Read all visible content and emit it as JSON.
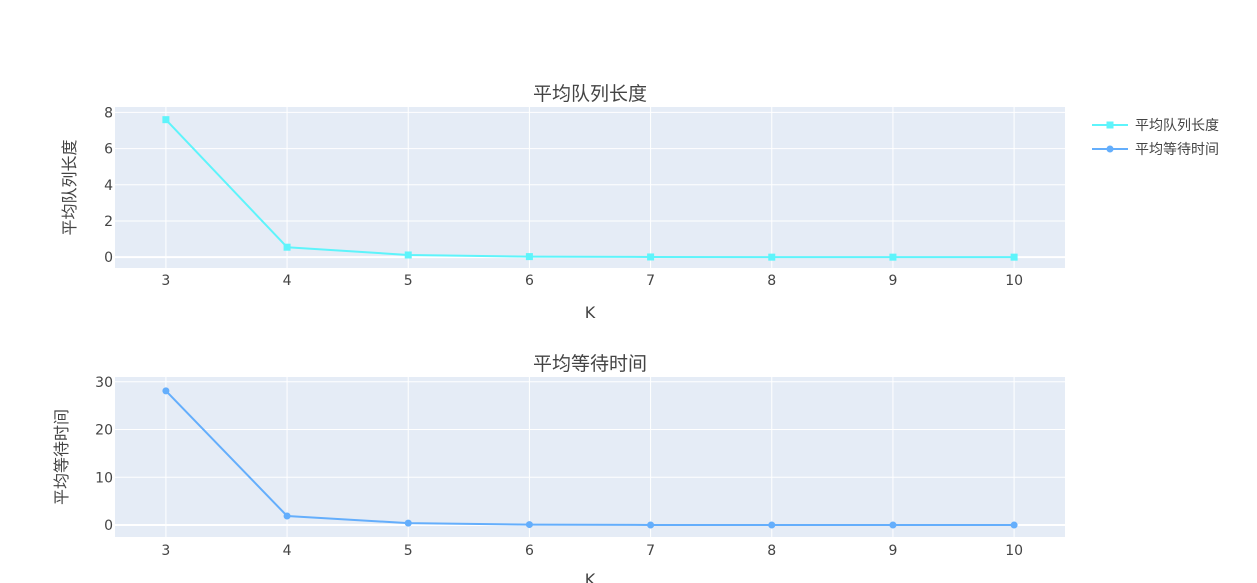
{
  "chart_data": [
    {
      "type": "line",
      "title": "平均队列长度",
      "xlabel": "K",
      "ylabel": "平均队列长度",
      "x": [
        3,
        4,
        5,
        6,
        7,
        8,
        9,
        10
      ],
      "xlim": [
        2.58,
        10.42
      ],
      "xticks": [
        3,
        4,
        5,
        6,
        7,
        8,
        9,
        10
      ],
      "ylim": [
        -0.6,
        8.3
      ],
      "yticks": [
        0,
        2,
        4,
        6,
        8
      ],
      "grid": true,
      "series": [
        {
          "name": "平均队列长度",
          "color": "#5ef4fb",
          "marker": "square",
          "values": [
            7.6,
            0.55,
            0.12,
            0.03,
            0.01,
            0.0,
            0.0,
            0.0
          ]
        }
      ]
    },
    {
      "type": "line",
      "title": "平均等待时间",
      "xlabel": "K",
      "ylabel": "平均等待时间",
      "x": [
        3,
        4,
        5,
        6,
        7,
        8,
        9,
        10
      ],
      "xlim": [
        2.58,
        10.42
      ],
      "xticks": [
        3,
        4,
        5,
        6,
        7,
        8,
        9,
        10
      ],
      "ylim": [
        -2.5,
        31
      ],
      "yticks": [
        0,
        10,
        20,
        30
      ],
      "grid": true,
      "series": [
        {
          "name": "平均等待时间",
          "color": "#64aefc",
          "marker": "circle",
          "values": [
            28.1,
            1.9,
            0.4,
            0.1,
            0.02,
            0.0,
            0.0,
            0.0
          ]
        }
      ]
    }
  ],
  "legend": {
    "placement": "top-right",
    "items": [
      {
        "label": "平均队列长度",
        "color": "#5ef4fb",
        "marker": "square"
      },
      {
        "label": "平均等待时间",
        "color": "#64aefc",
        "marker": "circle"
      }
    ]
  },
  "colors": {
    "plot_bg": "#e5ecf6",
    "grid": "#ffffff",
    "text": "#444444"
  }
}
